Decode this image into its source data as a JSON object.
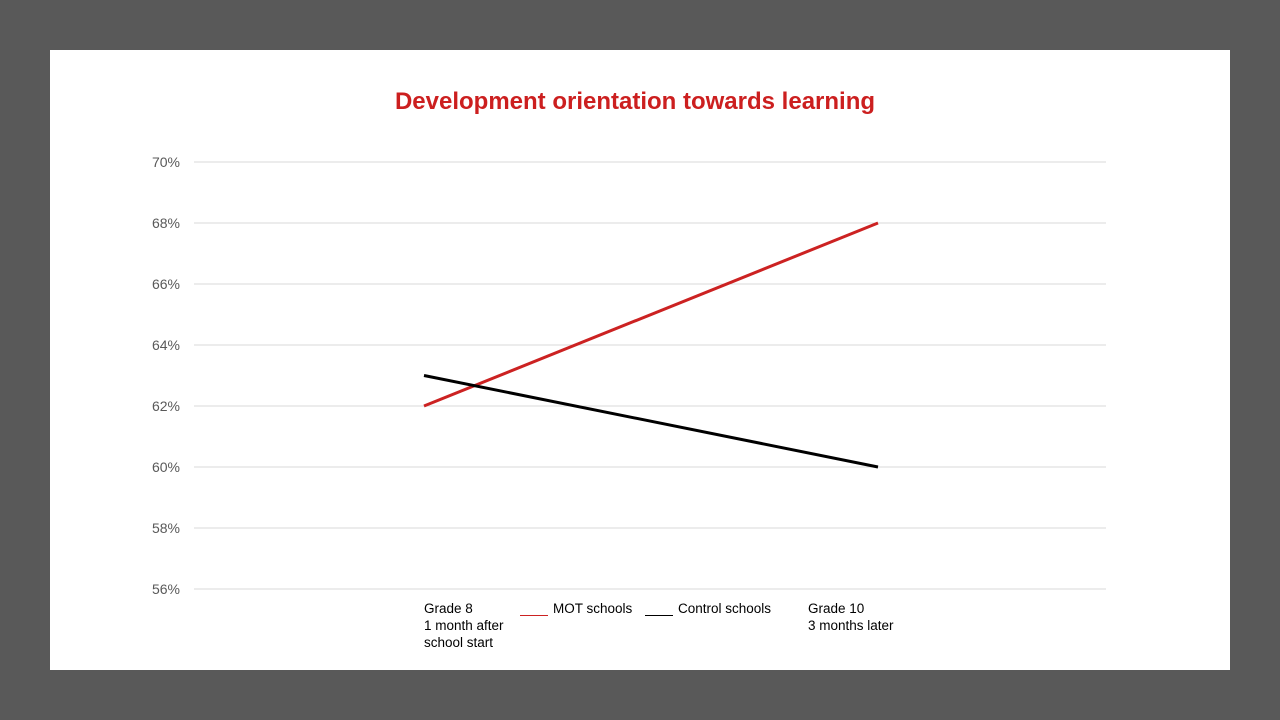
{
  "chart_data": {
    "type": "line",
    "title": "Development orientation towards learning",
    "categories": [
      "Grade 8\n1 month after\nschool start",
      "Grade 10\n3 months later"
    ],
    "series": [
      {
        "name": "MOT schools",
        "values": [
          62,
          68
        ],
        "color": "#cc2222"
      },
      {
        "name": "Control schools",
        "values": [
          63,
          60
        ],
        "color": "#000000"
      }
    ],
    "yticks": [
      "70%",
      "68%",
      "66%",
      "64%",
      "62%",
      "60%",
      "58%",
      "56%"
    ],
    "ylim": [
      56,
      70
    ],
    "grid": true,
    "legend": "bottom-center",
    "colors": {
      "title": "#cc1f1f",
      "background": "#595959",
      "gridline": "#d9d9d9",
      "tick_label": "#595959"
    }
  }
}
